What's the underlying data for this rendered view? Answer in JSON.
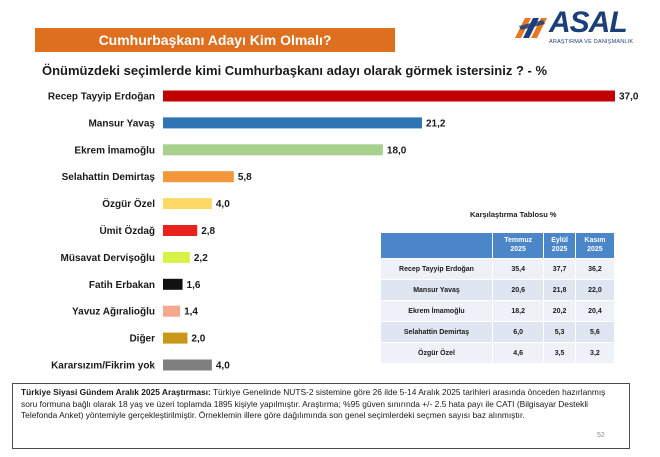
{
  "header": {
    "title": "Cumhurbaşkanı Adayı Kim Olmalı?",
    "logo_text": "ASAL",
    "logo_subtext": "ARAŞTIRMA VE DANIŞMANLIK"
  },
  "question": "Önümüzdeki seçimlerde kimi Cumhurbaşkanı adayı olarak görmek istersiniz ? - %",
  "chart_data": {
    "type": "bar",
    "orientation": "horizontal",
    "title": "Önümüzdeki seçimlerde kimi Cumhurbaşkanı adayı olarak görmek istersiniz ? - %",
    "categories": [
      "Recep Tayyip Erdoğan",
      "Mansur Yavaş",
      "Ekrem İmamoğlu",
      "Selahattin Demirtaş",
      "Özgür Özel",
      "Ümit Özdağ",
      "Müsavat Dervişoğlu",
      "Fatih Erbakan",
      "Yavuz Ağıralioğlu",
      "Diğer",
      "Kararsızım/Fikrim yok"
    ],
    "values": [
      37.0,
      21.2,
      18.0,
      5.8,
      4.0,
      2.8,
      2.2,
      1.6,
      1.4,
      2.0,
      4.0
    ],
    "value_labels": [
      "37,0",
      "21,2",
      "18,0",
      "5,8",
      "4,0",
      "2,8",
      "2,2",
      "1,6",
      "1,4",
      "2,0",
      "4,0"
    ],
    "colors": [
      "#c00000",
      "#2e75b6",
      "#a9d18e",
      "#f4963a",
      "#ffd966",
      "#e8211b",
      "#d9f24a",
      "#111111",
      "#f4a98e",
      "#c9961a",
      "#7f7f7f"
    ],
    "xlim": [
      0,
      37
    ],
    "grid": false,
    "legend": "none"
  },
  "comparison": {
    "title": "Karşılaştırma Tablosu %",
    "headers": [
      [
        "Temmuz",
        "2025"
      ],
      [
        "Eylül",
        "2025"
      ],
      [
        "Kasım",
        "2025"
      ]
    ],
    "rows": [
      {
        "name": "Recep Tayyip Erdoğan",
        "values": [
          "35,4",
          "37,7",
          "36,2"
        ]
      },
      {
        "name": "Mansur Yavaş",
        "values": [
          "20,6",
          "21,8",
          "22,0"
        ]
      },
      {
        "name": "Ekrem İmamoğlu",
        "values": [
          "18,2",
          "20,2",
          "20,4"
        ]
      },
      {
        "name": "Selahattin Demirtaş",
        "values": [
          "6,0",
          "5,3",
          "5,6"
        ]
      },
      {
        "name": "Özgür Özel",
        "values": [
          "4,6",
          "3,5",
          "3,2"
        ]
      }
    ]
  },
  "footnote": {
    "bold": "Türkiye Siyasi Gündem Aralık 2025 Araştırması:",
    "text": " Türkiye Genelinde NUTS-2 sistemine göre 26 ilde 5-14 Aralık 2025 tarihleri arasında önceden hazırlanmış soru formuna bağlı olarak 18 yaş ve üzeri toplamda 1895 kişiyle yapılmıştır. Araştırma; %95 güven sınırında +/- 2.5 hata payı ile CATI (Bilgisayar Destekli Telefonda Anket) yöntemiyle gerçekleştirilmiştir. Örneklemin illere göre dağılımında son genel seçimlerdeki seçmen sayısı baz alınmıştır."
  },
  "page_number": "52"
}
